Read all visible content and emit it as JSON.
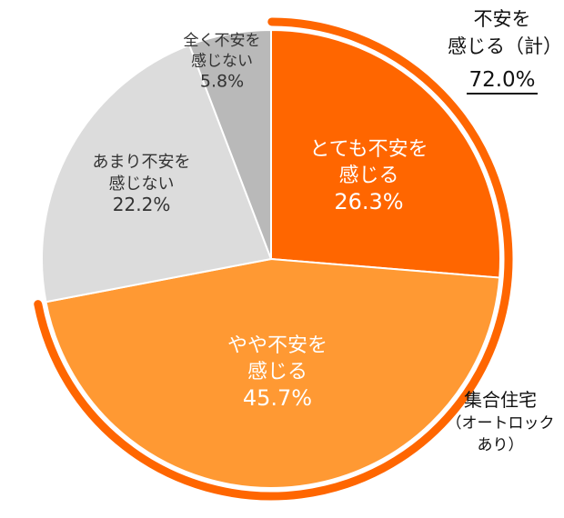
{
  "chart_data": {
    "type": "pie",
    "title": "",
    "slices": [
      {
        "label_lines": [
          "とても不安を",
          "感じる"
        ],
        "value_text": "26.3%",
        "value": 26.3,
        "color": "#ff6600",
        "label_color": "#ffffff"
      },
      {
        "label_lines": [
          "やや不安を",
          "感じる"
        ],
        "value_text": "45.7%",
        "value": 45.7,
        "color": "#ff9933",
        "label_color": "#ffffff"
      },
      {
        "label_lines": [
          "あまり不安を",
          "感じない"
        ],
        "value_text": "22.2%",
        "value": 22.2,
        "color": "#dcdcdc",
        "label_color": "#333333"
      },
      {
        "label_lines": [
          "全く不安を",
          "感じない"
        ],
        "value_text": "5.8%",
        "value": 5.8,
        "color": "#b9b9b9",
        "label_color": "#333333"
      }
    ],
    "start": "12 o'clock",
    "direction": "clockwise",
    "bracket_color": "#ff6600",
    "annotations": {
      "total_line1": "不安を",
      "total_line2": "感じる（計）",
      "total_value": "72.0%",
      "group_line1": "集合住宅",
      "group_line2": "（オートロック",
      "group_line3": "あり）"
    }
  }
}
